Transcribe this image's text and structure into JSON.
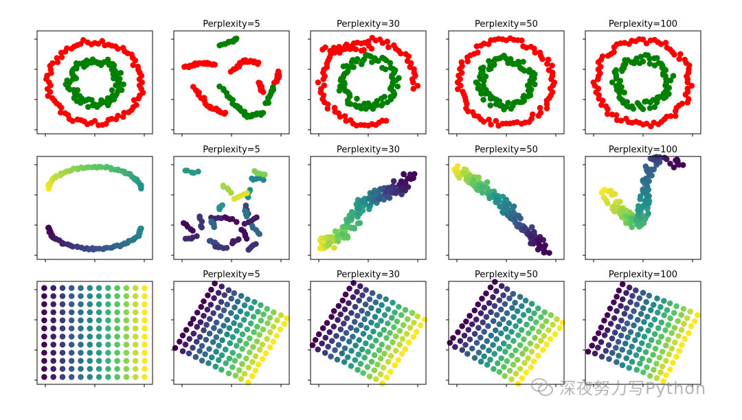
{
  "watermark": {
    "text": "深夜努力写Python",
    "icon": "wechat-icon"
  },
  "colors": {
    "red": "#ff0000",
    "green": "#008000"
  },
  "chart_data": [
    {
      "type": "scatter",
      "row": 0,
      "col": 0,
      "title": "",
      "pattern": "circles",
      "colors": [
        "red",
        "green"
      ]
    },
    {
      "type": "scatter",
      "row": 0,
      "col": 1,
      "title": "Perplexity=5",
      "pattern": "circles-tsne-5",
      "colors": [
        "red",
        "green"
      ]
    },
    {
      "type": "scatter",
      "row": 0,
      "col": 2,
      "title": "Perplexity=30",
      "pattern": "circles-tsne-30",
      "colors": [
        "red",
        "green"
      ]
    },
    {
      "type": "scatter",
      "row": 0,
      "col": 3,
      "title": "Perplexity=50",
      "pattern": "circles-tsne-50",
      "colors": [
        "red",
        "green"
      ]
    },
    {
      "type": "scatter",
      "row": 0,
      "col": 4,
      "title": "Perplexity=100",
      "pattern": "circles-tsne-100",
      "colors": [
        "red",
        "green"
      ]
    },
    {
      "type": "scatter",
      "row": 1,
      "col": 0,
      "title": "",
      "pattern": "s-curve",
      "colormap": "viridis"
    },
    {
      "type": "scatter",
      "row": 1,
      "col": 1,
      "title": "Perplexity=5",
      "pattern": "s-curve-tsne-5",
      "colormap": "viridis"
    },
    {
      "type": "scatter",
      "row": 1,
      "col": 2,
      "title": "Perplexity=30",
      "pattern": "s-curve-tsne-30",
      "colormap": "viridis"
    },
    {
      "type": "scatter",
      "row": 1,
      "col": 3,
      "title": "Perplexity=50",
      "pattern": "s-curve-tsne-50",
      "colormap": "viridis"
    },
    {
      "type": "scatter",
      "row": 1,
      "col": 4,
      "title": "Perplexity=100",
      "pattern": "s-curve-tsne-100",
      "colormap": "viridis"
    },
    {
      "type": "scatter",
      "row": 2,
      "col": 0,
      "title": "",
      "pattern": "grid",
      "colormap": "viridis",
      "grid_size": [
        12,
        12
      ]
    },
    {
      "type": "scatter",
      "row": 2,
      "col": 1,
      "title": "Perplexity=5",
      "pattern": "grid-rotated",
      "colormap": "viridis"
    },
    {
      "type": "scatter",
      "row": 2,
      "col": 2,
      "title": "Perplexity=30",
      "pattern": "grid-rotated",
      "colormap": "viridis"
    },
    {
      "type": "scatter",
      "row": 2,
      "col": 3,
      "title": "Perplexity=50",
      "pattern": "grid-rotated",
      "colormap": "viridis"
    },
    {
      "type": "scatter",
      "row": 2,
      "col": 4,
      "title": "Perplexity=100",
      "pattern": "grid-rotated",
      "colormap": "viridis"
    }
  ]
}
